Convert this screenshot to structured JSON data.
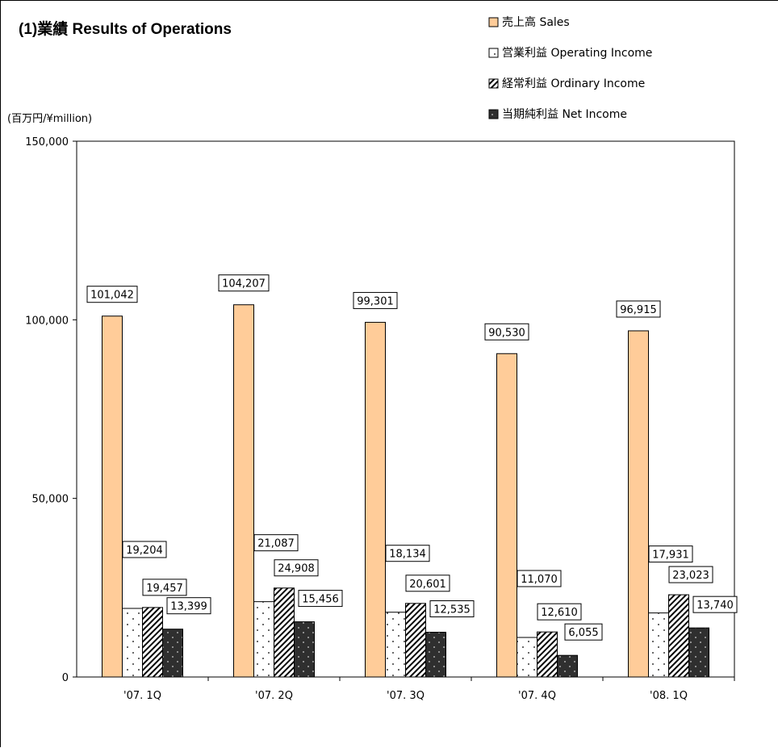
{
  "chart_data": {
    "type": "bar",
    "title": "(1)業績 Results of Operations",
    "unit_label": "(百万円/¥million)",
    "categories": [
      "'07. 1Q",
      "'07. 2Q",
      "'07. 3Q",
      "'07. 4Q",
      "'08. 1Q"
    ],
    "ylim": [
      0,
      150000
    ],
    "yticks": [
      0,
      50000,
      100000,
      150000
    ],
    "ytick_labels": [
      "0",
      "50,000",
      "100,000",
      "150,000"
    ],
    "grid": false,
    "legend_position": "top-right",
    "series": [
      {
        "name": "売上高 Sales",
        "color": "#FFCC99",
        "pattern": "solid",
        "values": [
          101042,
          104207,
          99301,
          90530,
          96915
        ],
        "labels": [
          "101,042",
          "104,207",
          "99,301",
          "90,530",
          "96,915"
        ]
      },
      {
        "name": "営業利益 Operating Income",
        "color": "#FFFFFF",
        "pattern": "dots",
        "values": [
          19204,
          21087,
          18134,
          11070,
          17931
        ],
        "labels": [
          "19,204",
          "21,087",
          "18,134",
          "11,070",
          "17,931"
        ]
      },
      {
        "name": "経常利益 Ordinary Income",
        "color": "#FFFFFF",
        "pattern": "diagonal",
        "values": [
          19457,
          24908,
          20601,
          12610,
          23023
        ],
        "labels": [
          "19,457",
          "24,908",
          "20,601",
          "12,610",
          "23,023"
        ]
      },
      {
        "name": "当期純利益 Net Income",
        "color": "#333333",
        "pattern": "dark-dots",
        "values": [
          13399,
          15456,
          12535,
          6055,
          13740
        ],
        "labels": [
          "13,399",
          "15,456",
          "12,535",
          "6,055",
          "13,740"
        ]
      }
    ]
  }
}
